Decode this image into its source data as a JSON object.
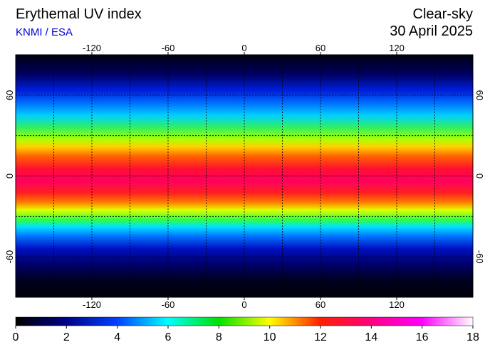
{
  "header": {
    "title": "Erythemal UV index",
    "source": "KNMI / ESA",
    "mode": "Clear-sky",
    "date": "30 April 2025"
  },
  "map": {
    "xlim": [
      -180,
      180
    ],
    "ylim": [
      -90,
      90
    ],
    "xticks": [
      -120,
      -60,
      0,
      60,
      120
    ],
    "yticks": [
      60,
      0,
      -60
    ],
    "xgrid": [
      -150,
      -120,
      -90,
      -60,
      -30,
      0,
      30,
      60,
      90,
      120,
      150
    ],
    "ygrid": [
      60,
      30,
      0,
      -30,
      -60
    ]
  },
  "colorbar": {
    "lim": [
      0,
      18
    ],
    "ticks": [
      0,
      2,
      4,
      6,
      8,
      10,
      12,
      14,
      16,
      18
    ]
  }
}
